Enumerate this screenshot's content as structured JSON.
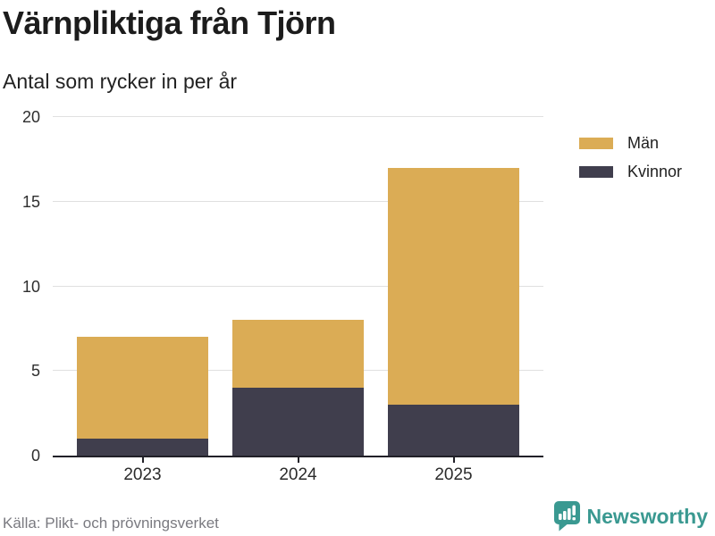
{
  "header": {
    "title": "Värnpliktiga från Tjörn",
    "subtitle": "Antal som rycker in per år"
  },
  "colors": {
    "men": "#DBAC55",
    "women": "#403E4D",
    "brand_teal": "#3A9991",
    "grid": "#E0E0E0",
    "axis": "#212028"
  },
  "chart_data": {
    "type": "bar",
    "stacked": true,
    "title": "Värnpliktiga från Tjörn",
    "subtitle": "Antal som rycker in per år",
    "categories": [
      "2023",
      "2024",
      "2025"
    ],
    "series": [
      {
        "name": "Män",
        "color": "#DBAC55",
        "values": [
          6,
          4,
          14
        ]
      },
      {
        "name": "Kvinnor",
        "color": "#403E4D",
        "values": [
          1,
          4,
          3
        ]
      }
    ],
    "totals": [
      7,
      8,
      17
    ],
    "xlabel": "",
    "ylabel": "",
    "ylim": [
      0,
      20
    ],
    "yticks": [
      0,
      5,
      10,
      15,
      20
    ],
    "grid": true,
    "legend_position": "right"
  },
  "footer": {
    "source": "Källa: Plikt- och prövningsverket",
    "brand": "Newsworthy"
  }
}
